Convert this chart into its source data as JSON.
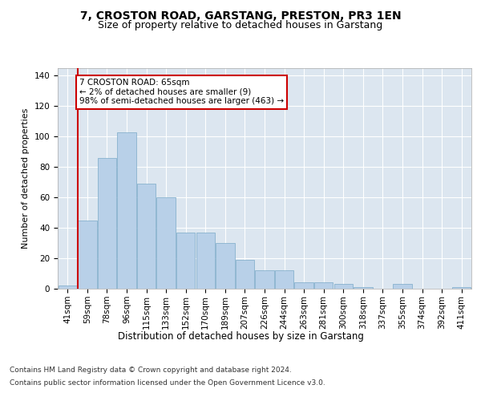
{
  "title1": "7, CROSTON ROAD, GARSTANG, PRESTON, PR3 1EN",
  "title2": "Size of property relative to detached houses in Garstang",
  "xlabel": "Distribution of detached houses by size in Garstang",
  "ylabel": "Number of detached properties",
  "categories": [
    "41sqm",
    "59sqm",
    "78sqm",
    "96sqm",
    "115sqm",
    "133sqm",
    "152sqm",
    "170sqm",
    "189sqm",
    "207sqm",
    "226sqm",
    "244sqm",
    "263sqm",
    "281sqm",
    "300sqm",
    "318sqm",
    "337sqm",
    "355sqm",
    "374sqm",
    "392sqm",
    "411sqm"
  ],
  "values": [
    2,
    45,
    86,
    103,
    69,
    60,
    37,
    37,
    30,
    19,
    12,
    12,
    4,
    4,
    3,
    1,
    0,
    3,
    0,
    0,
    1
  ],
  "bar_color": "#b8d0e8",
  "bar_edge_color": "#7aaac8",
  "vline_x_pos": 0.5,
  "vline_color": "#cc0000",
  "annotation_text": "7 CROSTON ROAD: 65sqm\n← 2% of detached houses are smaller (9)\n98% of semi-detached houses are larger (463) →",
  "annotation_box_color": "#ffffff",
  "annotation_box_edge": "#cc0000",
  "ylim": [
    0,
    145
  ],
  "yticks": [
    0,
    20,
    40,
    60,
    80,
    100,
    120,
    140
  ],
  "plot_bg_color": "#dce6f0",
  "grid_color": "#ffffff",
  "footer_line1": "Contains HM Land Registry data © Crown copyright and database right 2024.",
  "footer_line2": "Contains public sector information licensed under the Open Government Licence v3.0.",
  "title1_fontsize": 10,
  "title2_fontsize": 9,
  "xlabel_fontsize": 8.5,
  "ylabel_fontsize": 8,
  "tick_fontsize": 7.5,
  "annotation_fontsize": 7.5,
  "footer_fontsize": 6.5
}
